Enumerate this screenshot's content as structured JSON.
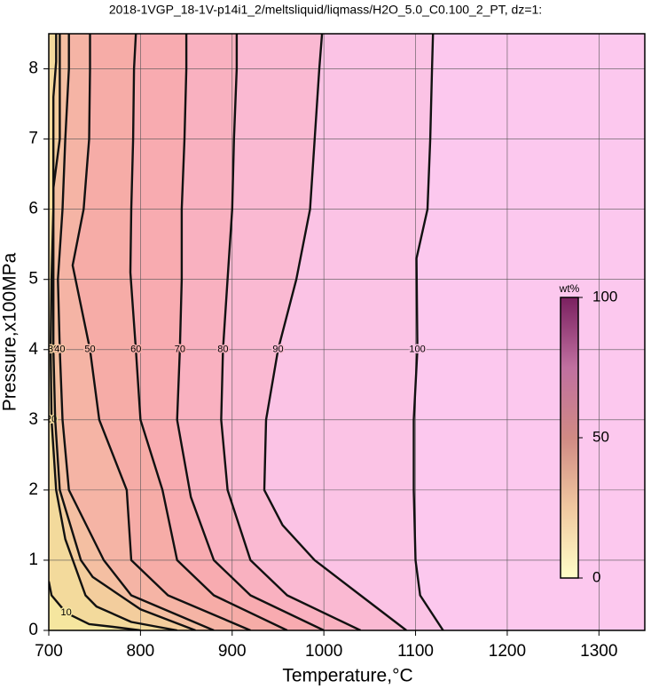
{
  "chart_data": {
    "type": "contour",
    "title": "2018-1VGP_18-1V-p14i1_2/meltsliquid/liqmass/H2O_5.0_C0.100_2_PT, dz=1:",
    "x_label": "Temperature,°C",
    "y_label": "Pressure,x100MPa",
    "xlim": [
      700,
      1350
    ],
    "ylim": [
      0,
      8.5
    ],
    "xticks": [
      700,
      800,
      900,
      1000,
      1100,
      1200,
      1300
    ],
    "yticks": [
      0,
      1,
      2,
      3,
      4,
      5,
      6,
      7,
      8
    ],
    "grid": true,
    "fill_colormap": [
      "#f6eca0",
      "#f2d49a",
      "#f4b8a4",
      "#f7a8a8",
      "#f9b4c8",
      "#fcc8ee"
    ],
    "colorbar": {
      "label": "wt%",
      "lim": [
        0,
        100
      ],
      "ticks": [
        0,
        50,
        100
      ],
      "colormap": [
        "#ffffc8",
        "#f0c8a0",
        "#d08a84",
        "#c070a0",
        "#7a2060"
      ]
    },
    "contours": [
      {
        "level": 10,
        "x": [
          800,
          770,
          744,
          719,
          703,
          700
        ],
        "y": [
          0,
          0.05,
          0.09,
          0.25,
          0.5,
          0.7
        ]
      },
      {
        "level": 20,
        "x": [
          840,
          790,
          752,
          740,
          718,
          708,
          703,
          702,
          703,
          705,
          705,
          708,
          708
        ],
        "y": [
          0,
          0.12,
          0.34,
          0.5,
          1.3,
          2,
          3,
          4,
          5,
          6,
          7.6,
          8.1,
          8.5
        ]
      },
      {
        "level": 30,
        "x": [
          860,
          800,
          748,
          735,
          712,
          707,
          705,
          705,
          705,
          712,
          712,
          712
        ],
        "y": [
          0,
          0.3,
          0.76,
          1,
          2,
          3,
          4,
          5,
          6.3,
          7,
          8,
          8.5
        ]
      },
      {
        "level": 40,
        "x": [
          880,
          790,
          760,
          722,
          715,
          712,
          710,
          715,
          718,
          722,
          722
        ],
        "y": [
          0,
          0.5,
          1,
          2,
          3,
          4,
          5,
          6,
          7,
          8,
          8.5
        ]
      },
      {
        "level": 50,
        "x": [
          920,
          830,
          790,
          785,
          755,
          745,
          726,
          738,
          744,
          745,
          745
        ],
        "y": [
          0,
          0.5,
          1,
          2,
          3,
          4,
          5.2,
          6,
          7,
          8,
          8.5
        ]
      },
      {
        "level": 60,
        "x": [
          960,
          880,
          840,
          824,
          800,
          795,
          789,
          790,
          792,
          793,
          795
        ],
        "y": [
          0,
          0.5,
          1,
          2,
          3,
          4,
          5.1,
          6,
          7,
          8,
          8.5
        ]
      },
      {
        "level": 70,
        "x": [
          1000,
          920,
          880,
          855,
          840,
          843,
          845,
          845,
          848,
          850,
          850
        ],
        "y": [
          0,
          0.5,
          1,
          1.9,
          3,
          4,
          5,
          6,
          7,
          8,
          8.5
        ]
      },
      {
        "level": 80,
        "x": [
          1040,
          960,
          920,
          895,
          888,
          890,
          896,
          900,
          902,
          905,
          905
        ],
        "y": [
          0,
          0.5,
          1,
          2,
          3,
          4,
          5.2,
          6,
          7,
          8,
          8.5
        ]
      },
      {
        "level": 90,
        "x": [
          1090,
          1040,
          990,
          955,
          935,
          937,
          950,
          970,
          985,
          990,
          995,
          998
        ],
        "y": [
          0,
          0.5,
          1,
          1.5,
          2,
          3,
          4,
          5,
          6,
          7,
          8,
          8.5
        ]
      },
      {
        "level": 100,
        "x": [
          1130,
          1105,
          1100,
          1098,
          1098,
          1102,
          1101,
          1113,
          1116,
          1118,
          1119
        ],
        "y": [
          0,
          0.5,
          1,
          2,
          3,
          4,
          5.3,
          6,
          7,
          8,
          8.5
        ]
      }
    ]
  }
}
